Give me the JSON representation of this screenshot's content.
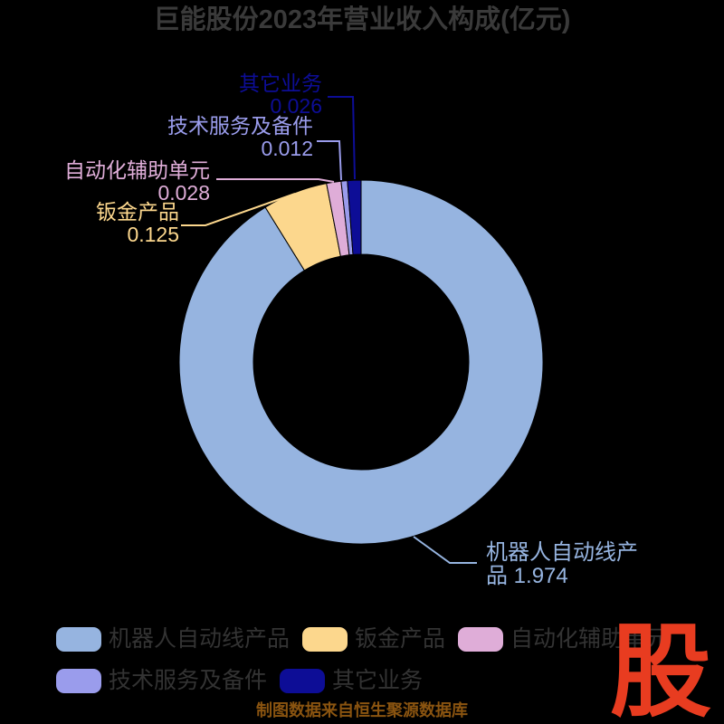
{
  "title": "巨能股份2023年营业收入构成(亿元)",
  "chart_data": {
    "type": "pie",
    "subtype": "donut",
    "title": "巨能股份2023年营业收入构成(亿元)",
    "unit": "亿元",
    "total": 2.165,
    "inner_radius_ratio": 0.59,
    "start_angle": "top",
    "direction": "clockwise",
    "legend_position": "bottom-left",
    "series": [
      {
        "name": "机器人自动线产品",
        "value": 1.974,
        "color": "#96b4e0"
      },
      {
        "name": "钣金产品",
        "value": 0.125,
        "color": "#fcd78d"
      },
      {
        "name": "自动化辅助单元",
        "value": 0.028,
        "color": "#dfadd8"
      },
      {
        "name": "技术服务及备件",
        "value": 0.012,
        "color": "#9a9cec"
      },
      {
        "name": "其它业务",
        "value": 0.026,
        "color": "#0d0d96"
      }
    ]
  },
  "legend": {
    "row1": [
      "机器人自动线产品",
      "钣金产品",
      "自动化辅助单元"
    ],
    "row2": [
      "技术服务及备件",
      "其它业务"
    ]
  },
  "footer": {
    "source_note": "制图数据来自恒生聚源数据库",
    "color": "#8a5410"
  },
  "logo": {
    "text": "股",
    "color": "#e83c20"
  },
  "colors": {
    "background": "#000000",
    "title_text": "#3a3a3a",
    "legend_text": "#333333"
  }
}
